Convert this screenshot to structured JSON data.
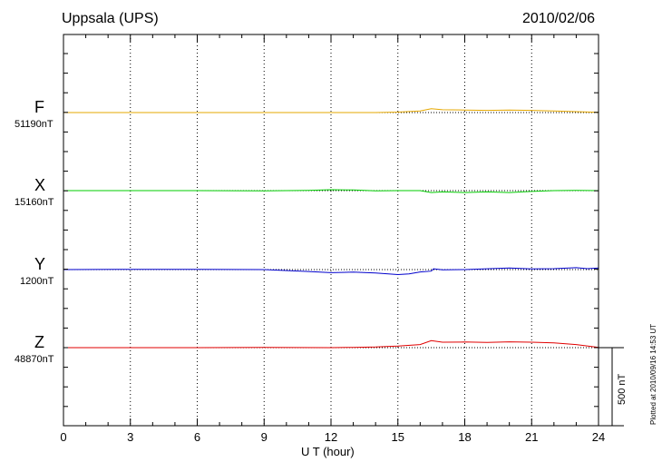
{
  "station_title": "Uppsala (UPS)",
  "date": "2010/02/06",
  "plotted_note": "Plotted at 2010/09/16 14:53 UT",
  "scale_label": "500 nT",
  "colors": {
    "F": "#e6a800",
    "X": "#00cc00",
    "Y": "#0000cc",
    "Z": "#e00000",
    "axis": "#000000"
  },
  "chart_data": {
    "type": "line",
    "title": "Uppsala (UPS)",
    "xlabel": "U T (hour)",
    "ylabel": "",
    "xlim": [
      0,
      24
    ],
    "x_ticks": [
      "0",
      "3",
      "6",
      "9",
      "12",
      "15",
      "18",
      "21",
      "24"
    ],
    "grid": "vertical dotted every 3 hours",
    "scale_bar_nT": 500,
    "series": [
      {
        "name": "F",
        "baseline_label": "51190nT",
        "baseline": 51190,
        "x": [
          0,
          3,
          6,
          9,
          12,
          14,
          15,
          16,
          16.5,
          17,
          18,
          19,
          20,
          21,
          22,
          23,
          24
        ],
        "y": [
          51190,
          51190,
          51190,
          51190,
          51190,
          51190,
          51193,
          51200,
          51215,
          51208,
          51206,
          51204,
          51206,
          51204,
          51200,
          51196,
          51192
        ]
      },
      {
        "name": "X",
        "baseline_label": "15160nT",
        "baseline": 15160,
        "x": [
          0,
          3,
          6,
          9,
          11,
          12,
          13,
          14,
          15,
          16,
          16.5,
          17,
          18,
          19,
          20,
          21,
          22,
          23,
          24
        ],
        "y": [
          15160,
          15160,
          15160,
          15158,
          15162,
          15166,
          15164,
          15158,
          15160,
          15160,
          15148,
          15152,
          15148,
          15152,
          15148,
          15155,
          15160,
          15162,
          15160
        ]
      },
      {
        "name": "Y",
        "baseline_label": "1200nT",
        "baseline": 1200,
        "x": [
          0,
          3,
          6,
          9,
          11,
          12,
          13,
          14,
          15,
          15.5,
          16,
          16.5,
          16.6,
          17,
          18,
          19,
          20,
          21,
          22,
          23,
          23.5,
          24
        ],
        "y": [
          1200,
          1202,
          1202,
          1200,
          1188,
          1180,
          1184,
          1178,
          1168,
          1172,
          1185,
          1190,
          1205,
          1198,
          1200,
          1205,
          1210,
          1204,
          1206,
          1212,
          1206,
          1210
        ]
      },
      {
        "name": "Z",
        "baseline_label": "48870nT",
        "baseline": 48870,
        "x": [
          0,
          3,
          6,
          9,
          12,
          13,
          14,
          15,
          16,
          16.5,
          17,
          18,
          19,
          20,
          21,
          22,
          23,
          24
        ],
        "y": [
          48870,
          48870,
          48870,
          48872,
          48870,
          48872,
          48874,
          48880,
          48890,
          48915,
          48905,
          48906,
          48904,
          48907,
          48905,
          48900,
          48890,
          48872
        ]
      }
    ]
  }
}
